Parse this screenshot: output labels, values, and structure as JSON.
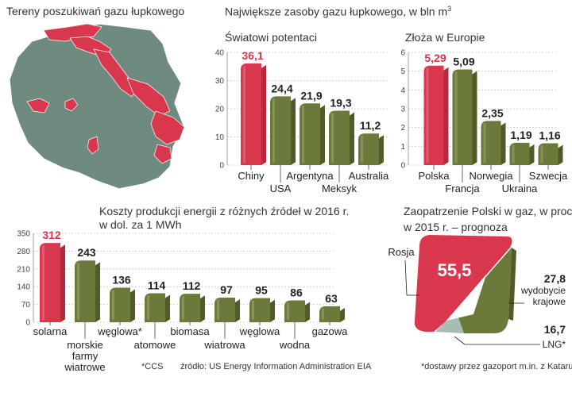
{
  "colors": {
    "red": "#d9374d",
    "olive": "#6b7a3a",
    "olive_dark": "#4f5c28",
    "map_fill": "#6f8a7f",
    "lng": "#a7bcb3"
  },
  "panels": {
    "map": {
      "title": "Tereny poszukiwań gazu łupkowego"
    },
    "reserves": {
      "title": "Największe zasoby gazu łupkowego, w bln m",
      "title_sup": "3"
    },
    "costs": {
      "title_line1": "Koszty produkcji energii z różnych źródeł w 2016 r.",
      "title_line2": "w dol. za 1 MWh"
    },
    "supply": {
      "title_line1": "Zaopatrzenie Polski w gaz,  w proc.",
      "title_line2": "w 2015 r. – prognoza"
    }
  },
  "chart_data": [
    {
      "id": "world",
      "type": "bar",
      "title": "Światowi potentaci",
      "categories": [
        "Chiny",
        "USA",
        "Argentyna",
        "Meksyk",
        "Australia"
      ],
      "values": [
        36.1,
        24.4,
        21.9,
        19.3,
        11.2
      ],
      "value_labels": [
        "36,1",
        "24,4",
        "21,9",
        "19,3",
        "11,2"
      ],
      "highlight": [
        true,
        false,
        false,
        false,
        false
      ],
      "ylim": [
        0,
        40
      ],
      "yticks": [
        0,
        10,
        20,
        30,
        40
      ],
      "grid": true
    },
    {
      "id": "europe",
      "type": "bar",
      "title": "Złoża w Europie",
      "categories": [
        "Polska",
        "Francja",
        "Norwegia",
        "Ukraina",
        "Szwecja"
      ],
      "values": [
        5.29,
        5.09,
        2.35,
        1.19,
        1.16
      ],
      "value_labels": [
        "5,29",
        "5,09",
        "2,35",
        "1,19",
        "1,16"
      ],
      "highlight": [
        true,
        false,
        false,
        false,
        false
      ],
      "ylim": [
        0,
        6
      ],
      "yticks": [
        0,
        1,
        2,
        3,
        4,
        5,
        6
      ],
      "grid": true
    },
    {
      "id": "costs",
      "type": "bar",
      "categories": [
        "solarna",
        "morskie farmy wiatrowe",
        "węglowa*",
        "atomowe",
        "biomasa",
        "wiatrowa",
        "węglowa",
        "wodna",
        "gazowa"
      ],
      "values": [
        312,
        243,
        136,
        114,
        112,
        97,
        95,
        86,
        63
      ],
      "value_labels": [
        "312",
        "243",
        "136",
        "114",
        "112",
        "97",
        "95",
        "86",
        "63"
      ],
      "highlight": [
        true,
        false,
        false,
        false,
        false,
        false,
        false,
        false,
        false
      ],
      "ylim": [
        0,
        350
      ],
      "yticks": [
        0,
        70,
        140,
        210,
        280,
        350
      ],
      "grid": true,
      "footnote": "*CCS",
      "source": "źródło: US Energy Information Administration EIA"
    },
    {
      "id": "supply",
      "type": "pie",
      "slices": [
        {
          "name": "Rosja",
          "value": 55.5,
          "label": "55,5"
        },
        {
          "name": "wydobycie krajowe",
          "value": 27.8,
          "label": "27,8"
        },
        {
          "name": "LNG*",
          "value": 16.7,
          "label": "16,7"
        }
      ],
      "footnote": "*dostawy przez gazoport m.in. z Kataru"
    }
  ]
}
